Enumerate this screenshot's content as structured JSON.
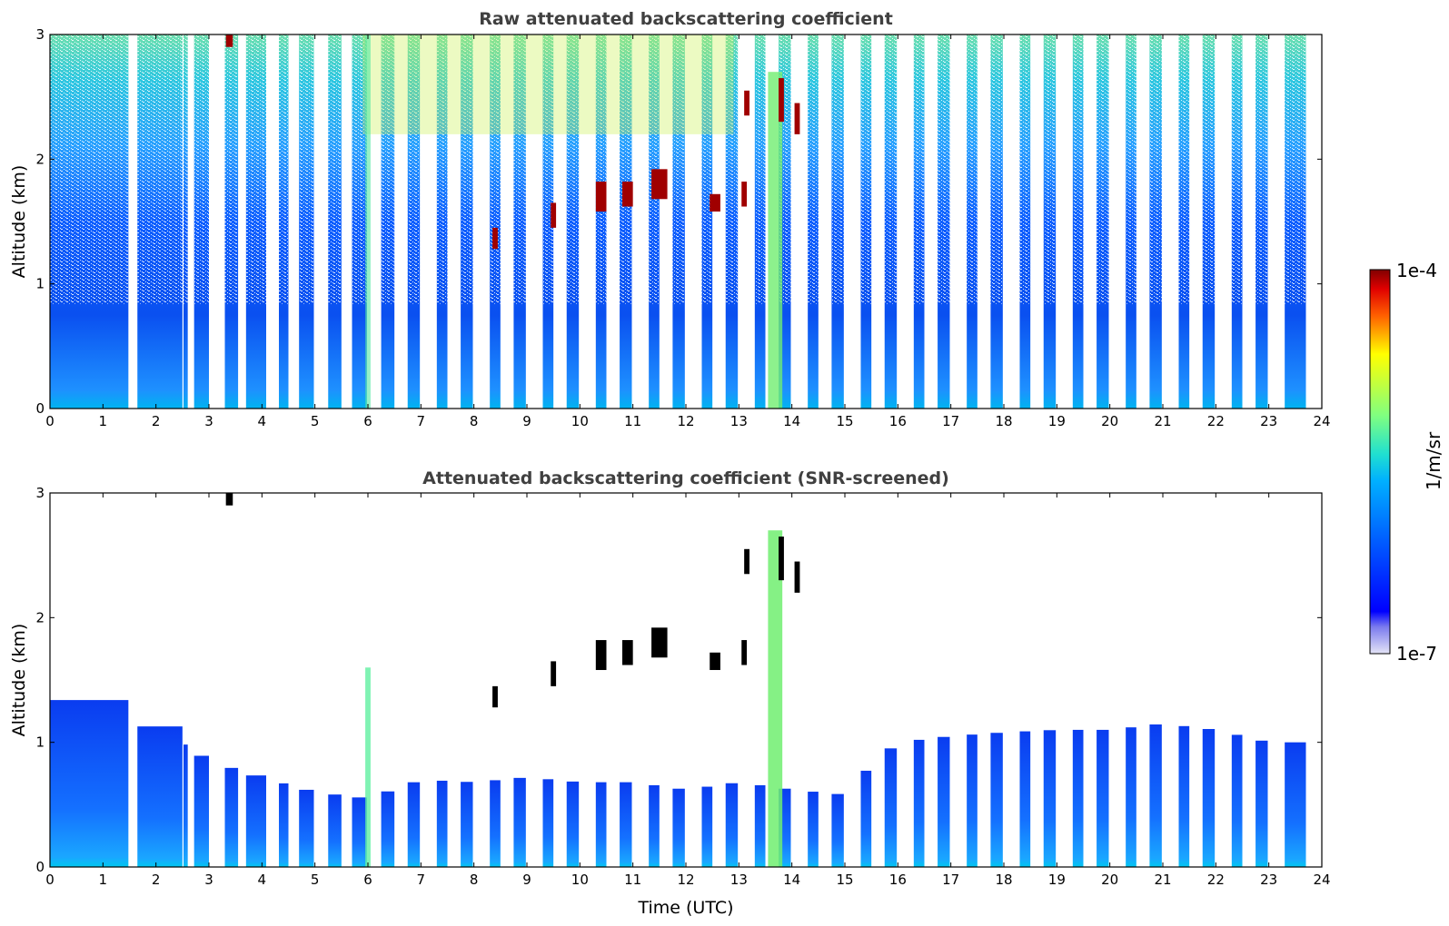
{
  "chart_data": [
    {
      "type": "heatmap",
      "title": "Raw attenuated backscattering coefficient",
      "xlabel": "",
      "ylabel": "Altitude (km)",
      "xlim": [
        0,
        24
      ],
      "ylim": [
        0,
        3
      ],
      "xticks": [
        "0",
        "1",
        "2",
        "3",
        "4",
        "5",
        "6",
        "7",
        "8",
        "9",
        "10",
        "11",
        "12",
        "13",
        "14",
        "15",
        "16",
        "17",
        "18",
        "19",
        "20",
        "21",
        "22",
        "23",
        "24"
      ],
      "yticks": [
        "0",
        "1",
        "2",
        "3"
      ],
      "profiles_start_hours": [
        0.0,
        1.65,
        2.52,
        2.72,
        3.3,
        3.7,
        4.32,
        4.7,
        5.25,
        5.7,
        6.25,
        6.75,
        7.3,
        7.75,
        8.3,
        8.75,
        9.3,
        9.75,
        10.3,
        10.75,
        11.3,
        11.75,
        12.3,
        12.75,
        13.3,
        13.75,
        14.3,
        14.75,
        15.3,
        15.75,
        16.3,
        16.75,
        17.3,
        17.75,
        18.3,
        18.75,
        19.3,
        19.75,
        20.3,
        20.75,
        21.3,
        21.75,
        22.3,
        22.75,
        23.3
      ],
      "profiles_end_hours": [
        1.48,
        2.5,
        2.6,
        3.0,
        3.55,
        4.08,
        4.5,
        4.98,
        5.5,
        5.98,
        6.5,
        6.98,
        7.5,
        7.98,
        8.5,
        8.98,
        9.5,
        9.98,
        10.5,
        10.98,
        11.5,
        11.98,
        12.5,
        12.98,
        13.5,
        13.98,
        14.5,
        14.98,
        15.5,
        15.98,
        16.5,
        16.98,
        17.5,
        17.98,
        18.5,
        18.98,
        19.5,
        19.98,
        20.5,
        20.98,
        21.5,
        21.98,
        22.5,
        22.98,
        23.7
      ],
      "cloud_layers": [
        {
          "time_start": 3.32,
          "time_end": 3.45,
          "alt_start": 2.9,
          "alt_end": 3.0
        },
        {
          "time_start": 8.35,
          "time_end": 8.45,
          "alt_start": 1.28,
          "alt_end": 1.45
        },
        {
          "time_start": 9.45,
          "time_end": 9.55,
          "alt_start": 1.45,
          "alt_end": 1.65
        },
        {
          "time_start": 10.3,
          "time_end": 10.5,
          "alt_start": 1.58,
          "alt_end": 1.82
        },
        {
          "time_start": 10.8,
          "time_end": 11.0,
          "alt_start": 1.62,
          "alt_end": 1.82
        },
        {
          "time_start": 11.35,
          "time_end": 11.65,
          "alt_start": 1.68,
          "alt_end": 1.92
        },
        {
          "time_start": 12.45,
          "time_end": 12.65,
          "alt_start": 1.58,
          "alt_end": 1.72
        },
        {
          "time_start": 13.05,
          "time_end": 13.15,
          "alt_start": 1.62,
          "alt_end": 1.82
        },
        {
          "time_start": 13.1,
          "time_end": 13.2,
          "alt_start": 2.35,
          "alt_end": 2.55
        },
        {
          "time_start": 13.75,
          "time_end": 13.85,
          "alt_start": 2.3,
          "alt_end": 2.65
        },
        {
          "time_start": 14.05,
          "time_end": 14.15,
          "alt_start": 2.2,
          "alt_end": 2.45
        }
      ]
    },
    {
      "type": "heatmap",
      "title": "Attenuated backscattering coefficient (SNR-screened)",
      "xlabel": "Time (UTC)",
      "ylabel": "Altitude (km)",
      "xlim": [
        0,
        24
      ],
      "ylim": [
        0,
        3
      ],
      "xticks": [
        "0",
        "1",
        "2",
        "3",
        "4",
        "5",
        "6",
        "7",
        "8",
        "9",
        "10",
        "11",
        "12",
        "13",
        "14",
        "15",
        "16",
        "17",
        "18",
        "19",
        "20",
        "21",
        "22",
        "23",
        "24"
      ],
      "yticks": [
        "0",
        "1",
        "2",
        "3"
      ],
      "boundary_layer_top_km": [
        [
          0.0,
          1.45
        ],
        [
          1.0,
          1.3
        ],
        [
          2.0,
          1.15
        ],
        [
          3.0,
          0.85
        ],
        [
          4.0,
          0.72
        ],
        [
          5.0,
          0.6
        ],
        [
          6.0,
          0.55
        ],
        [
          7.0,
          0.7
        ],
        [
          8.0,
          0.68
        ],
        [
          9.0,
          0.72
        ],
        [
          10.0,
          0.68
        ],
        [
          11.0,
          0.68
        ],
        [
          12.0,
          0.62
        ],
        [
          13.0,
          0.68
        ],
        [
          14.0,
          0.62
        ],
        [
          15.0,
          0.58
        ],
        [
          15.5,
          0.82
        ],
        [
          16.0,
          1.0
        ],
        [
          17.0,
          1.05
        ],
        [
          18.0,
          1.08
        ],
        [
          19.0,
          1.1
        ],
        [
          20.0,
          1.1
        ],
        [
          21.0,
          1.15
        ],
        [
          22.0,
          1.1
        ],
        [
          23.0,
          1.0
        ],
        [
          23.7,
          1.0
        ]
      ]
    }
  ],
  "colorbar": {
    "label": "1/m/sr",
    "max_label": "1e-4",
    "min_label": "1e-7",
    "scale": "log",
    "colormap": "jet"
  }
}
